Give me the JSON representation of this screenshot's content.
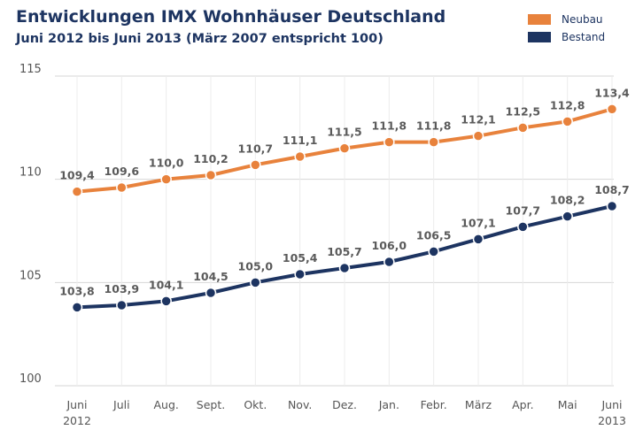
{
  "title": "Entwicklungen IMX Wohnhäuser Deutschland",
  "subtitle": "Juni 2012 bis Juni 2013 (März 2007 entspricht 100)",
  "colors": {
    "neubau": "#e8823c",
    "bestand": "#1d3461",
    "grid": "#d6d6d6",
    "label": "#555555"
  },
  "chart_data": {
    "type": "line",
    "title": "Entwicklungen IMX Wohnhäuser Deutschland",
    "subtitle": "Juni 2012 bis Juni 2013 (März 2007 entspricht 100)",
    "categories": [
      "Juni 2012",
      "Juli",
      "Aug.",
      "Sept.",
      "Okt.",
      "Nov.",
      "Dez.",
      "Jan.",
      "Febr.",
      "März",
      "Apr.",
      "Mai",
      "Juni 2013"
    ],
    "category_lines": [
      [
        "Juni",
        "2012"
      ],
      [
        "Juli"
      ],
      [
        "Aug."
      ],
      [
        "Sept."
      ],
      [
        "Okt."
      ],
      [
        "Nov."
      ],
      [
        "Dez."
      ],
      [
        "Jan."
      ],
      [
        "Febr."
      ],
      [
        "März"
      ],
      [
        "Apr."
      ],
      [
        "Mai"
      ],
      [
        "Juni",
        "2013"
      ]
    ],
    "yticks": [
      100,
      105,
      110,
      115
    ],
    "ylim": [
      100,
      115
    ],
    "grid": true,
    "legend_position": "top-right",
    "series": [
      {
        "name": "Neubau",
        "color": "#e8823c",
        "values": [
          109.4,
          109.6,
          110.0,
          110.2,
          110.7,
          111.1,
          111.5,
          111.8,
          111.8,
          112.1,
          112.5,
          112.8,
          113.4
        ],
        "labels": [
          "109,4",
          "109,6",
          "110,0",
          "110,2",
          "110,7",
          "111,1",
          "111,5",
          "111,8",
          "111,8",
          "112,1",
          "112,5",
          "112,8",
          "113,4"
        ]
      },
      {
        "name": "Bestand",
        "color": "#1d3461",
        "values": [
          103.8,
          103.9,
          104.1,
          104.5,
          105.0,
          105.4,
          105.7,
          106.0,
          106.5,
          107.1,
          107.7,
          108.2,
          108.7
        ],
        "labels": [
          "103,8",
          "103,9",
          "104,1",
          "104,5",
          "105,0",
          "105,4",
          "105,7",
          "106,0",
          "106,5",
          "107,1",
          "107,7",
          "108,2",
          "108,7"
        ]
      }
    ]
  }
}
